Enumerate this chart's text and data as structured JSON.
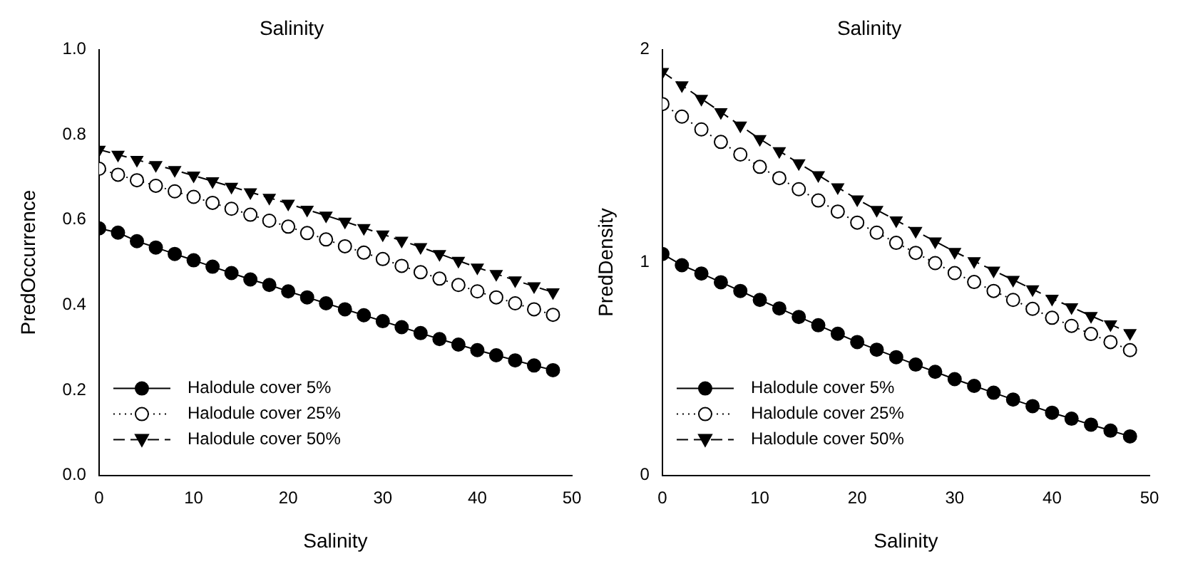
{
  "chart_data": [
    {
      "type": "line",
      "title": "Salinity",
      "xlabel": "Salinity",
      "ylabel": "PredOccurrence",
      "x": [
        0,
        2,
        4,
        6,
        8,
        10,
        12,
        14,
        16,
        18,
        20,
        22,
        24,
        26,
        28,
        30,
        32,
        34,
        36,
        38,
        40,
        42,
        44,
        46,
        48
      ],
      "series": [
        {
          "name": "Halodule cover 5%",
          "color": "#000000",
          "marker": "circle",
          "line_style": "solid",
          "values": [
            0.58,
            0.57,
            0.55,
            0.535,
            0.52,
            0.505,
            0.49,
            0.475,
            0.46,
            0.447,
            0.432,
            0.418,
            0.404,
            0.39,
            0.376,
            0.362,
            0.348,
            0.334,
            0.32,
            0.307,
            0.294,
            0.282,
            0.27,
            0.258,
            0.247
          ]
        },
        {
          "name": "Halodule cover 25%",
          "color": "#000000",
          "marker": "circle",
          "line_style": "dotted",
          "values": [
            0.72,
            0.706,
            0.693,
            0.68,
            0.667,
            0.654,
            0.64,
            0.626,
            0.612,
            0.598,
            0.584,
            0.569,
            0.554,
            0.538,
            0.523,
            0.508,
            0.492,
            0.477,
            0.462,
            0.447,
            0.432,
            0.418,
            0.404,
            0.39,
            0.377
          ]
        },
        {
          "name": "Halodule cover 50%",
          "color": "#000000",
          "marker": "triangle",
          "line_style": "dashed",
          "values": [
            0.765,
            0.753,
            0.741,
            0.729,
            0.717,
            0.704,
            0.691,
            0.678,
            0.665,
            0.652,
            0.638,
            0.624,
            0.61,
            0.596,
            0.581,
            0.566,
            0.551,
            0.536,
            0.52,
            0.504,
            0.488,
            0.473,
            0.458,
            0.444,
            0.43
          ]
        }
      ],
      "xlim": [
        0,
        50
      ],
      "xticks": [
        0,
        10,
        20,
        30,
        40,
        50
      ],
      "ylim": [
        0,
        1
      ],
      "yticks": [
        {
          "value": 0,
          "label": "0.0"
        },
        {
          "value": 0.2,
          "label": "0.2"
        },
        {
          "value": 0.4,
          "label": "0.4"
        },
        {
          "value": 0.6,
          "label": "0.6"
        },
        {
          "value": 0.8,
          "label": "0.8"
        },
        {
          "value": 1,
          "label": "1.0"
        }
      ],
      "grid": false,
      "legend": "bottom left"
    },
    {
      "type": "line",
      "title": "Salinity",
      "xlabel": "Salinity",
      "ylabel": "PredDensity",
      "x": [
        0,
        2,
        4,
        6,
        8,
        10,
        12,
        14,
        16,
        18,
        20,
        22,
        24,
        26,
        28,
        30,
        32,
        34,
        36,
        38,
        40,
        42,
        44,
        46,
        48
      ],
      "series": [
        {
          "name": "Halodule cover 5%",
          "color": "#000000",
          "marker": "circle",
          "line_style": "solid",
          "values": [
            1.04,
            0.987,
            0.948,
            0.907,
            0.866,
            0.824,
            0.784,
            0.744,
            0.705,
            0.665,
            0.626,
            0.59,
            0.555,
            0.52,
            0.486,
            0.452,
            0.42,
            0.388,
            0.356,
            0.325,
            0.294,
            0.266,
            0.238,
            0.21,
            0.183
          ]
        },
        {
          "name": "Halodule cover 25%",
          "color": "#000000",
          "marker": "circle",
          "line_style": "dotted",
          "values": [
            1.744,
            1.685,
            1.625,
            1.566,
            1.507,
            1.449,
            1.396,
            1.344,
            1.291,
            1.239,
            1.187,
            1.14,
            1.092,
            1.045,
            0.997,
            0.95,
            0.908,
            0.866,
            0.824,
            0.782,
            0.74,
            0.702,
            0.664,
            0.626,
            0.588
          ]
        },
        {
          "name": "Halodule cover 50%",
          "color": "#000000",
          "marker": "triangle",
          "line_style": "dashed",
          "values": [
            1.895,
            1.832,
            1.769,
            1.706,
            1.643,
            1.58,
            1.523,
            1.466,
            1.41,
            1.353,
            1.296,
            1.247,
            1.198,
            1.148,
            1.099,
            1.05,
            1.006,
            0.962,
            0.918,
            0.874,
            0.83,
            0.79,
            0.749,
            0.709,
            0.668
          ]
        }
      ],
      "xlim": [
        0,
        50
      ],
      "xticks": [
        0,
        10,
        20,
        30,
        40,
        50
      ],
      "ylim": [
        0,
        2
      ],
      "yticks": [
        0,
        1,
        2
      ],
      "grid": false,
      "legend": "bottom left"
    }
  ]
}
